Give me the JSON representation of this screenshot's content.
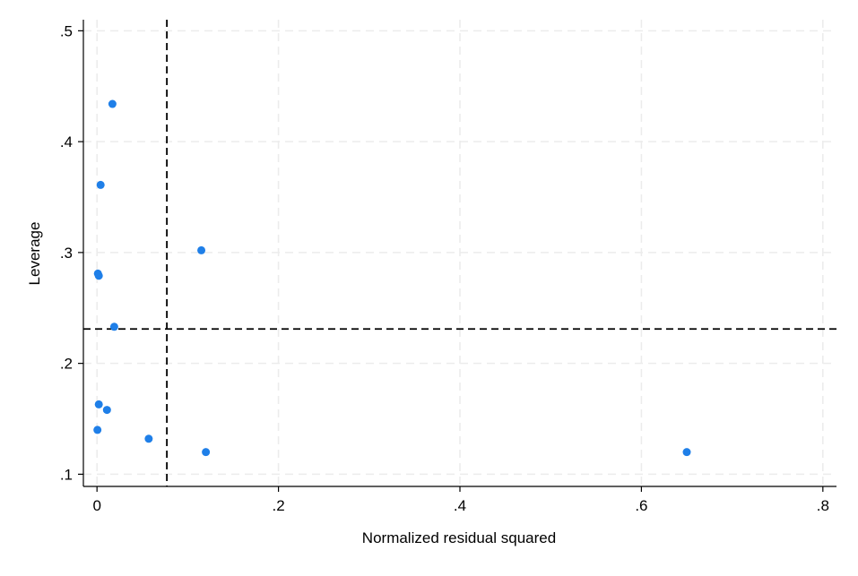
{
  "chart_data": {
    "type": "scatter",
    "title": "",
    "xlabel": "Normalized residual squared",
    "ylabel": "Leverage",
    "xlim": [
      -0.015,
      0.815
    ],
    "ylim": [
      0.089,
      0.51
    ],
    "x_ticks": [
      0,
      0.2,
      0.4,
      0.6,
      0.8
    ],
    "x_tick_labels": [
      "0",
      ".2",
      ".4",
      ".6",
      ".8"
    ],
    "y_ticks": [
      0.1,
      0.2,
      0.3,
      0.4,
      0.5
    ],
    "y_tick_labels": [
      ".1",
      ".2",
      ".3",
      ".4",
      ".5"
    ],
    "grid": true,
    "reference_lines": {
      "x": 0.077,
      "y": 0.231
    },
    "marker_color": "#1f7fe8",
    "series": [
      {
        "x": [
          0.017,
          0.004,
          0.115,
          0.001,
          0.002,
          0.019,
          0.002,
          0.011,
          0.0005,
          0.057,
          0.12,
          0.65
        ],
        "y": [
          0.434,
          0.361,
          0.302,
          0.281,
          0.279,
          0.233,
          0.163,
          0.158,
          0.14,
          0.132,
          0.12,
          0.12
        ]
      }
    ]
  }
}
